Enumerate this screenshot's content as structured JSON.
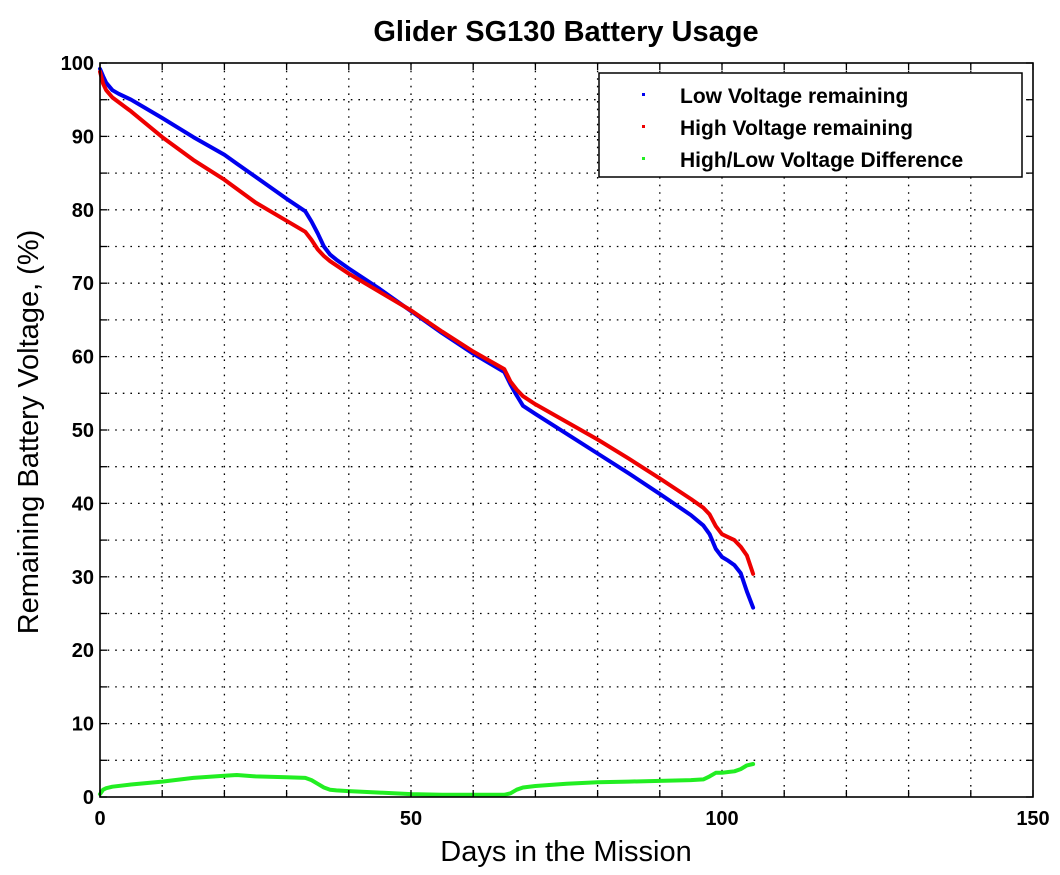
{
  "chart_data": {
    "type": "line",
    "title": "Glider SG130 Battery Usage",
    "xlabel": "Days in the Mission",
    "ylabel": "Remaining Battery Voltage, (%)",
    "xlim": [
      0,
      150
    ],
    "ylim": [
      0,
      100
    ],
    "xticks": [
      "0",
      "50",
      "100",
      "150"
    ],
    "yticks": [
      "0",
      "10",
      "20",
      "30",
      "40",
      "50",
      "60",
      "70",
      "80",
      "90",
      "100"
    ],
    "grid": true,
    "legend_position": "top-right",
    "series": [
      {
        "name": "Low Voltage remaining",
        "color": "#0000ee",
        "x": [
          0,
          0.5,
          1,
          2,
          3,
          5,
          10,
          15,
          20,
          22,
          25,
          30,
          33,
          34,
          35,
          36,
          37,
          38,
          40,
          45,
          50,
          55,
          60,
          65,
          66,
          67,
          68,
          70,
          75,
          80,
          85,
          90,
          95,
          96,
          97,
          98,
          99,
          100,
          101,
          102,
          103,
          104,
          105
        ],
        "y": [
          99.2,
          98.2,
          97.3,
          96.3,
          95.8,
          95.0,
          92.5,
          89.9,
          87.5,
          86.3,
          84.5,
          81.5,
          79.8,
          78.4,
          76.8,
          75.0,
          73.9,
          73.2,
          72.0,
          69.2,
          66.2,
          63.2,
          60.4,
          57.9,
          56.2,
          54.7,
          53.3,
          52.2,
          49.5,
          46.8,
          44.1,
          41.3,
          38.4,
          37.7,
          37.0,
          35.8,
          33.8,
          32.7,
          32.2,
          31.6,
          30.5,
          28.0,
          25.8
        ]
      },
      {
        "name": "High Voltage remaining",
        "color": "#ee0000",
        "x": [
          0,
          0.5,
          1,
          2,
          5,
          10,
          15,
          20,
          25,
          30,
          33,
          34,
          35,
          36,
          37,
          40,
          45,
          50,
          55,
          60,
          65,
          66,
          67,
          68,
          70,
          75,
          80,
          85,
          90,
          95,
          96,
          97,
          98,
          99,
          100,
          101,
          102,
          103,
          104,
          105
        ],
        "y": [
          98.8,
          97.2,
          96.3,
          95.3,
          93.4,
          89.9,
          86.8,
          84.1,
          81.0,
          78.5,
          77.0,
          75.9,
          74.6,
          73.7,
          73.0,
          71.3,
          68.8,
          66.3,
          63.4,
          60.7,
          58.3,
          56.6,
          55.5,
          54.6,
          53.5,
          51.1,
          48.7,
          46.1,
          43.4,
          40.6,
          40.0,
          39.4,
          38.5,
          36.9,
          35.8,
          35.4,
          35.0,
          34.1,
          32.9,
          30.4
        ]
      },
      {
        "name": "High/Low Voltage Difference",
        "color": "#22ee22",
        "x": [
          0,
          0.5,
          1,
          2,
          5,
          10,
          15,
          20,
          22,
          25,
          30,
          33,
          34,
          35,
          36,
          37,
          38,
          40,
          45,
          50,
          55,
          60,
          65,
          66,
          67,
          68,
          70,
          75,
          80,
          85,
          90,
          95,
          97,
          98,
          99,
          100,
          101,
          102,
          103,
          104,
          105
        ],
        "y": [
          0.4,
          1.0,
          1.2,
          1.4,
          1.7,
          2.1,
          2.6,
          2.9,
          3.0,
          2.8,
          2.7,
          2.6,
          2.3,
          1.8,
          1.3,
          1.0,
          0.9,
          0.8,
          0.6,
          0.4,
          0.3,
          0.3,
          0.3,
          0.5,
          1.0,
          1.3,
          1.5,
          1.8,
          2.0,
          2.1,
          2.2,
          2.3,
          2.4,
          2.8,
          3.3,
          3.3,
          3.4,
          3.5,
          3.8,
          4.3,
          4.5
        ]
      }
    ]
  }
}
